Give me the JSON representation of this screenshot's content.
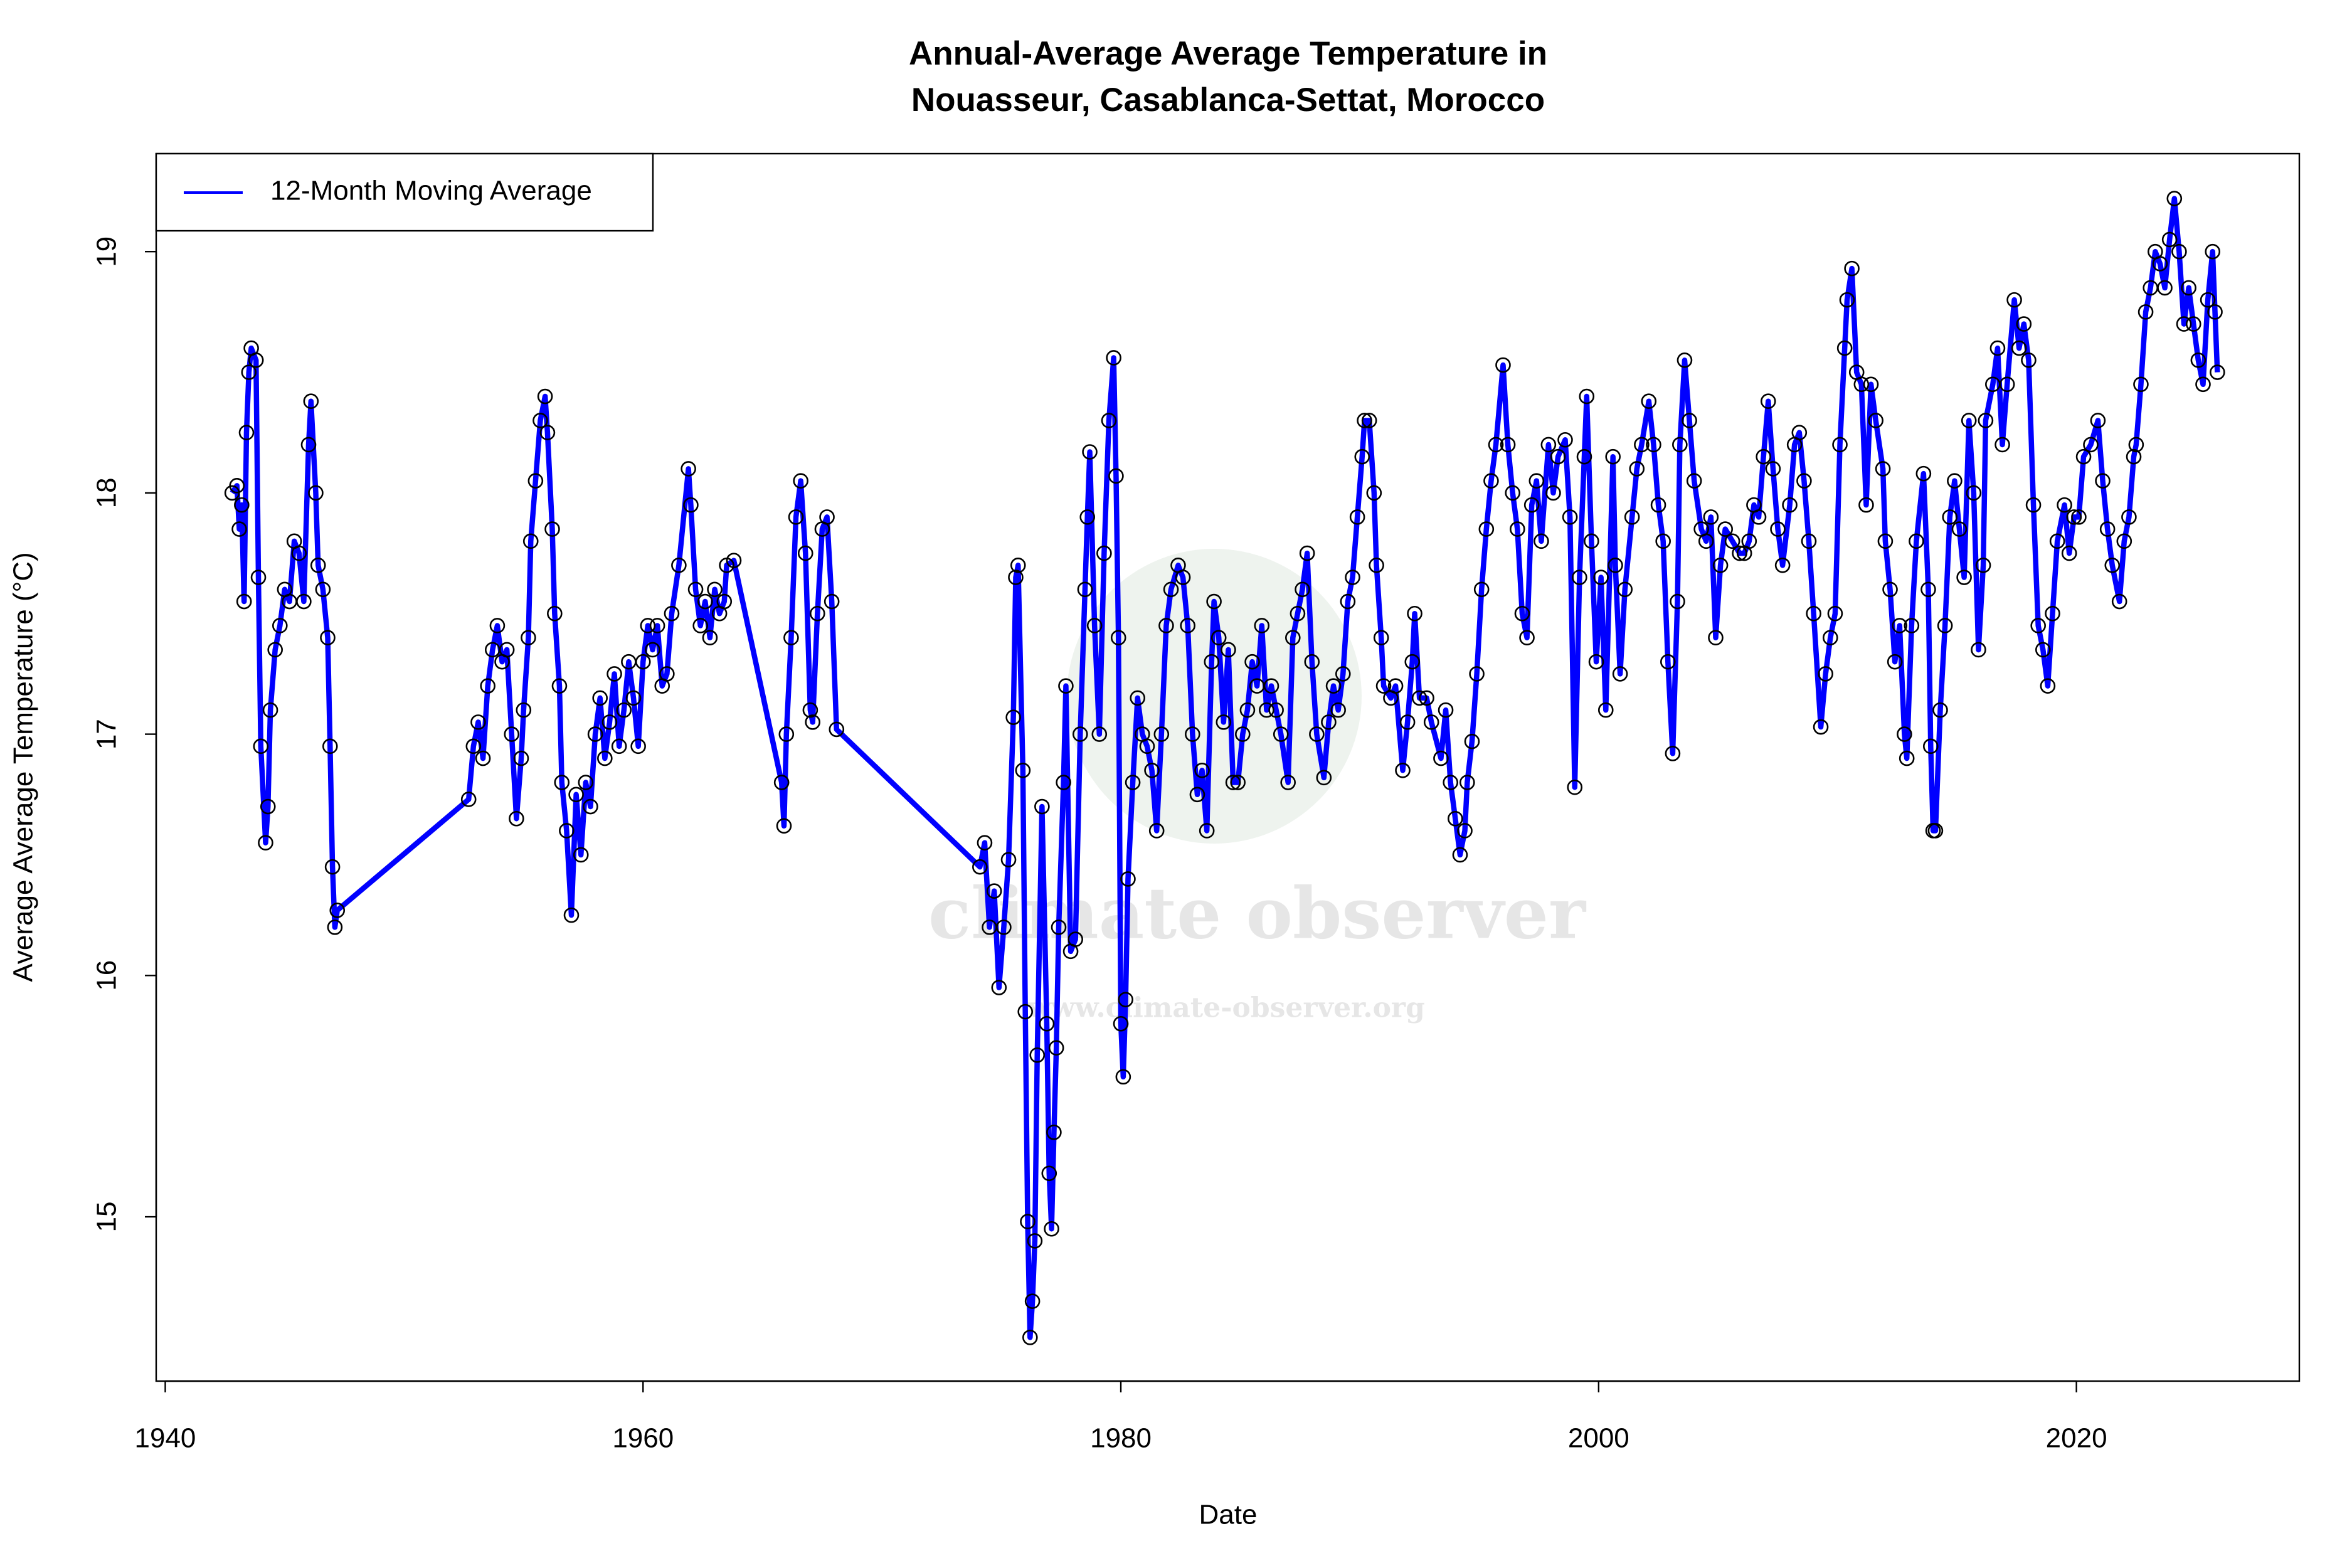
{
  "chart_data": {
    "type": "line",
    "title": [
      "Annual-Average Average Temperature in",
      "Nouasseur, Casablanca-Settat, Morocco"
    ],
    "x_label": "Date",
    "y_label": "Average Average Temperature (°C)",
    "watermark": "climate observer",
    "watermark_url": "www.climate-observer.org",
    "legend": "top-left",
    "marker_color": "#000000",
    "xlim": [
      1939.62,
      2029.33
    ],
    "xticks": [
      1940,
      1960,
      1980,
      2000,
      2020
    ],
    "ylim": [
      14.319,
      19.406
    ],
    "yticks": [
      15,
      16,
      17,
      18,
      19
    ],
    "x": [
      1942.8,
      1943.0,
      1943.1,
      1943.2,
      1943.3,
      1943.4,
      1943.5,
      1943.6,
      1943.8,
      1943.9,
      1944.0,
      1944.2,
      1944.3,
      1944.4,
      1944.6,
      1944.8,
      1945.0,
      1945.2,
      1945.4,
      1945.6,
      1945.8,
      1946.0,
      1946.1,
      1946.3,
      1946.4,
      1946.6,
      1946.8,
      1946.9,
      1947.0,
      1947.1,
      1947.2,
      1952.7,
      1952.9,
      1953.1,
      1953.3,
      1953.5,
      1953.7,
      1953.9,
      1954.1,
      1954.3,
      1954.5,
      1954.7,
      1954.9,
      1955.0,
      1955.2,
      1955.3,
      1955.5,
      1955.7,
      1955.9,
      1956.0,
      1956.2,
      1956.3,
      1956.5,
      1956.6,
      1956.8,
      1957.0,
      1957.2,
      1957.4,
      1957.6,
      1957.8,
      1958.0,
      1958.2,
      1958.4,
      1958.6,
      1958.8,
      1959.0,
      1959.2,
      1959.4,
      1959.6,
      1959.8,
      1960.0,
      1960.2,
      1960.4,
      1960.6,
      1960.8,
      1961.0,
      1961.2,
      1961.5,
      1961.9,
      1962.0,
      1962.2,
      1962.4,
      1962.6,
      1962.8,
      1963.0,
      1963.2,
      1963.4,
      1963.5,
      1963.8,
      1965.8,
      1965.9,
      1966.0,
      1966.2,
      1966.4,
      1966.6,
      1966.8,
      1967.0,
      1967.1,
      1967.3,
      1967.5,
      1967.7,
      1967.9,
      1968.1,
      1974.1,
      1974.3,
      1974.5,
      1974.7,
      1974.9,
      1975.1,
      1975.3,
      1975.5,
      1975.6,
      1975.7,
      1975.9,
      1976.0,
      1976.1,
      1976.2,
      1976.3,
      1976.4,
      1976.5,
      1976.7,
      1976.9,
      1977.0,
      1977.1,
      1977.2,
      1977.3,
      1977.4,
      1977.6,
      1977.7,
      1977.9,
      1978.1,
      1978.3,
      1978.5,
      1978.6,
      1978.7,
      1978.9,
      1979.1,
      1979.3,
      1979.5,
      1979.7,
      1979.8,
      1979.9,
      1980.0,
      1980.1,
      1980.2,
      1980.3,
      1980.5,
      1980.7,
      1980.9,
      1981.1,
      1981.3,
      1981.5,
      1981.7,
      1981.9,
      1982.1,
      1982.4,
      1982.6,
      1982.8,
      1983.0,
      1983.2,
      1983.4,
      1983.6,
      1983.8,
      1983.9,
      1984.1,
      1984.3,
      1984.5,
      1984.7,
      1984.9,
      1985.1,
      1985.3,
      1985.5,
      1985.7,
      1985.9,
      1986.1,
      1986.3,
      1986.5,
      1986.7,
      1987.0,
      1987.2,
      1987.4,
      1987.6,
      1987.8,
      1988.0,
      1988.2,
      1988.5,
      1988.7,
      1988.9,
      1989.1,
      1989.3,
      1989.5,
      1989.7,
      1989.9,
      1990.1,
      1990.2,
      1990.4,
      1990.6,
      1990.7,
      1990.9,
      1991.0,
      1991.3,
      1991.5,
      1991.8,
      1992.0,
      1992.2,
      1992.3,
      1992.5,
      1992.8,
      1993.0,
      1993.4,
      1993.6,
      1993.8,
      1994.0,
      1994.2,
      1994.4,
      1994.5,
      1994.7,
      1994.9,
      1995.1,
      1995.3,
      1995.5,
      1995.7,
      1996.0,
      1996.2,
      1996.4,
      1996.6,
      1996.8,
      1997.0,
      1997.2,
      1997.4,
      1997.6,
      1997.9,
      1998.1,
      1998.3,
      1998.6,
      1998.8,
      1999.0,
      1999.2,
      1999.4,
      1999.5,
      1999.7,
      1999.9,
      2000.1,
      2000.3,
      2000.6,
      2000.7,
      2000.9,
      2001.1,
      2001.4,
      2001.6,
      2001.8,
      2002.1,
      2002.3,
      2002.5,
      2002.7,
      2002.9,
      2003.1,
      2003.3,
      2003.4,
      2003.6,
      2003.8,
      2004.0,
      2004.3,
      2004.5,
      2004.7,
      2004.9,
      2005.1,
      2005.3,
      2005.6,
      2005.9,
      2006.1,
      2006.3,
      2006.5,
      2006.7,
      2006.9,
      2007.1,
      2007.3,
      2007.5,
      2007.7,
      2008.0,
      2008.2,
      2008.4,
      2008.6,
      2008.8,
      2009.0,
      2009.3,
      2009.5,
      2009.7,
      2009.9,
      2010.1,
      2010.3,
      2010.4,
      2010.6,
      2010.8,
      2011.0,
      2011.2,
      2011.4,
      2011.6,
      2011.9,
      2012.0,
      2012.2,
      2012.4,
      2012.6,
      2012.8,
      2012.9,
      2013.1,
      2013.3,
      2013.6,
      2013.8,
      2013.9,
      2014.0,
      2014.1,
      2014.3,
      2014.5,
      2014.7,
      2014.9,
      2015.1,
      2015.3,
      2015.5,
      2015.7,
      2015.9,
      2016.1,
      2016.2,
      2016.5,
      2016.7,
      2016.9,
      2017.1,
      2017.4,
      2017.6,
      2017.8,
      2018.0,
      2018.2,
      2018.4,
      2018.6,
      2018.8,
      2019.0,
      2019.2,
      2019.5,
      2019.7,
      2019.9,
      2020.1,
      2020.3,
      2020.6,
      2020.9,
      2021.1,
      2021.3,
      2021.5,
      2021.8,
      2022.0,
      2022.2,
      2022.4,
      2022.5,
      2022.7,
      2022.9,
      2023.1,
      2023.3,
      2023.5,
      2023.7,
      2023.9,
      2024.1,
      2024.3,
      2024.5,
      2024.7,
      2024.9,
      2025.1,
      2025.3,
      2025.5,
      2025.7,
      2025.8,
      2025.9
    ],
    "series": [
      {
        "name": "12-Month Moving Average",
        "color": "#0000ff",
        "values": [
          18.0,
          18.03,
          17.85,
          17.95,
          17.55,
          18.25,
          18.5,
          18.6,
          18.55,
          17.65,
          16.95,
          16.55,
          16.7,
          17.1,
          17.35,
          17.45,
          17.6,
          17.55,
          17.8,
          17.75,
          17.55,
          18.2,
          18.38,
          18.0,
          17.7,
          17.6,
          17.4,
          16.95,
          16.45,
          16.2,
          16.27,
          16.73,
          16.95,
          17.05,
          16.9,
          17.2,
          17.35,
          17.45,
          17.3,
          17.35,
          17.0,
          16.65,
          16.9,
          17.1,
          17.4,
          17.8,
          18.05,
          18.3,
          18.4,
          18.25,
          17.85,
          17.5,
          17.2,
          16.8,
          16.6,
          16.25,
          16.75,
          16.5,
          16.8,
          16.7,
          17.0,
          17.15,
          16.9,
          17.05,
          17.25,
          16.95,
          17.1,
          17.3,
          17.15,
          16.95,
          17.3,
          17.45,
          17.35,
          17.45,
          17.2,
          17.25,
          17.5,
          17.7,
          18.1,
          17.95,
          17.6,
          17.45,
          17.55,
          17.4,
          17.6,
          17.5,
          17.55,
          17.7,
          17.72,
          16.8,
          16.62,
          17.0,
          17.4,
          17.9,
          18.05,
          17.75,
          17.1,
          17.05,
          17.5,
          17.85,
          17.9,
          17.55,
          17.02,
          16.45,
          16.55,
          16.2,
          16.35,
          15.95,
          16.2,
          16.48,
          17.07,
          17.65,
          17.7,
          16.85,
          15.85,
          14.98,
          14.5,
          14.65,
          14.9,
          15.67,
          16.7,
          15.8,
          15.18,
          14.95,
          15.35,
          15.7,
          16.2,
          16.8,
          17.2,
          16.1,
          16.15,
          17.0,
          17.6,
          17.9,
          18.17,
          17.45,
          17.0,
          17.75,
          18.3,
          18.56,
          18.07,
          17.4,
          15.8,
          15.58,
          15.9,
          16.4,
          16.8,
          17.15,
          17.0,
          16.95,
          16.85,
          16.6,
          17.0,
          17.45,
          17.6,
          17.7,
          17.65,
          17.45,
          17.0,
          16.75,
          16.85,
          16.6,
          17.3,
          17.55,
          17.4,
          17.05,
          17.35,
          16.8,
          16.8,
          17.0,
          17.1,
          17.3,
          17.2,
          17.45,
          17.1,
          17.2,
          17.1,
          17.0,
          16.8,
          17.4,
          17.5,
          17.6,
          17.75,
          17.3,
          17.0,
          16.82,
          17.05,
          17.2,
          17.1,
          17.25,
          17.55,
          17.65,
          17.9,
          18.15,
          18.3,
          18.3,
          18.0,
          17.7,
          17.4,
          17.2,
          17.15,
          17.2,
          16.85,
          17.05,
          17.3,
          17.5,
          17.15,
          17.15,
          17.05,
          16.9,
          17.1,
          16.8,
          16.65,
          16.5,
          16.6,
          16.8,
          16.97,
          17.25,
          17.6,
          17.85,
          18.05,
          18.2,
          18.53,
          18.2,
          18.0,
          17.85,
          17.5,
          17.4,
          17.95,
          18.05,
          17.8,
          18.2,
          18.0,
          18.15,
          18.22,
          17.9,
          16.78,
          17.65,
          18.15,
          18.4,
          17.8,
          17.3,
          17.65,
          17.1,
          18.15,
          17.7,
          17.25,
          17.6,
          17.9,
          18.1,
          18.2,
          18.38,
          18.2,
          17.95,
          17.8,
          17.3,
          16.92,
          17.55,
          18.2,
          18.55,
          18.3,
          18.05,
          17.85,
          17.8,
          17.9,
          17.4,
          17.7,
          17.85,
          17.8,
          17.75,
          17.75,
          17.8,
          17.95,
          17.9,
          18.15,
          18.38,
          18.1,
          17.85,
          17.7,
          17.95,
          18.2,
          18.25,
          18.05,
          17.8,
          17.5,
          17.03,
          17.25,
          17.4,
          17.5,
          18.2,
          18.6,
          18.8,
          18.93,
          18.5,
          18.45,
          17.95,
          18.45,
          18.3,
          18.1,
          17.8,
          17.6,
          17.3,
          17.45,
          17.0,
          16.9,
          17.45,
          17.8,
          18.08,
          17.6,
          16.95,
          16.6,
          16.6,
          17.1,
          17.45,
          17.9,
          18.05,
          17.85,
          17.65,
          18.3,
          18.0,
          17.35,
          17.7,
          18.3,
          18.45,
          18.6,
          18.2,
          18.45,
          18.8,
          18.6,
          18.7,
          18.55,
          17.95,
          17.45,
          17.35,
          17.2,
          17.5,
          17.8,
          17.95,
          17.75,
          17.9,
          17.9,
          18.15,
          18.2,
          18.3,
          18.05,
          17.85,
          17.7,
          17.55,
          17.8,
          17.9,
          18.15,
          18.2,
          18.45,
          18.75,
          18.85,
          19.0,
          18.95,
          18.85,
          19.05,
          19.22,
          19.0,
          18.7,
          18.85,
          18.7,
          18.55,
          18.45,
          18.8,
          19.0,
          18.75,
          18.5
        ]
      }
    ]
  }
}
